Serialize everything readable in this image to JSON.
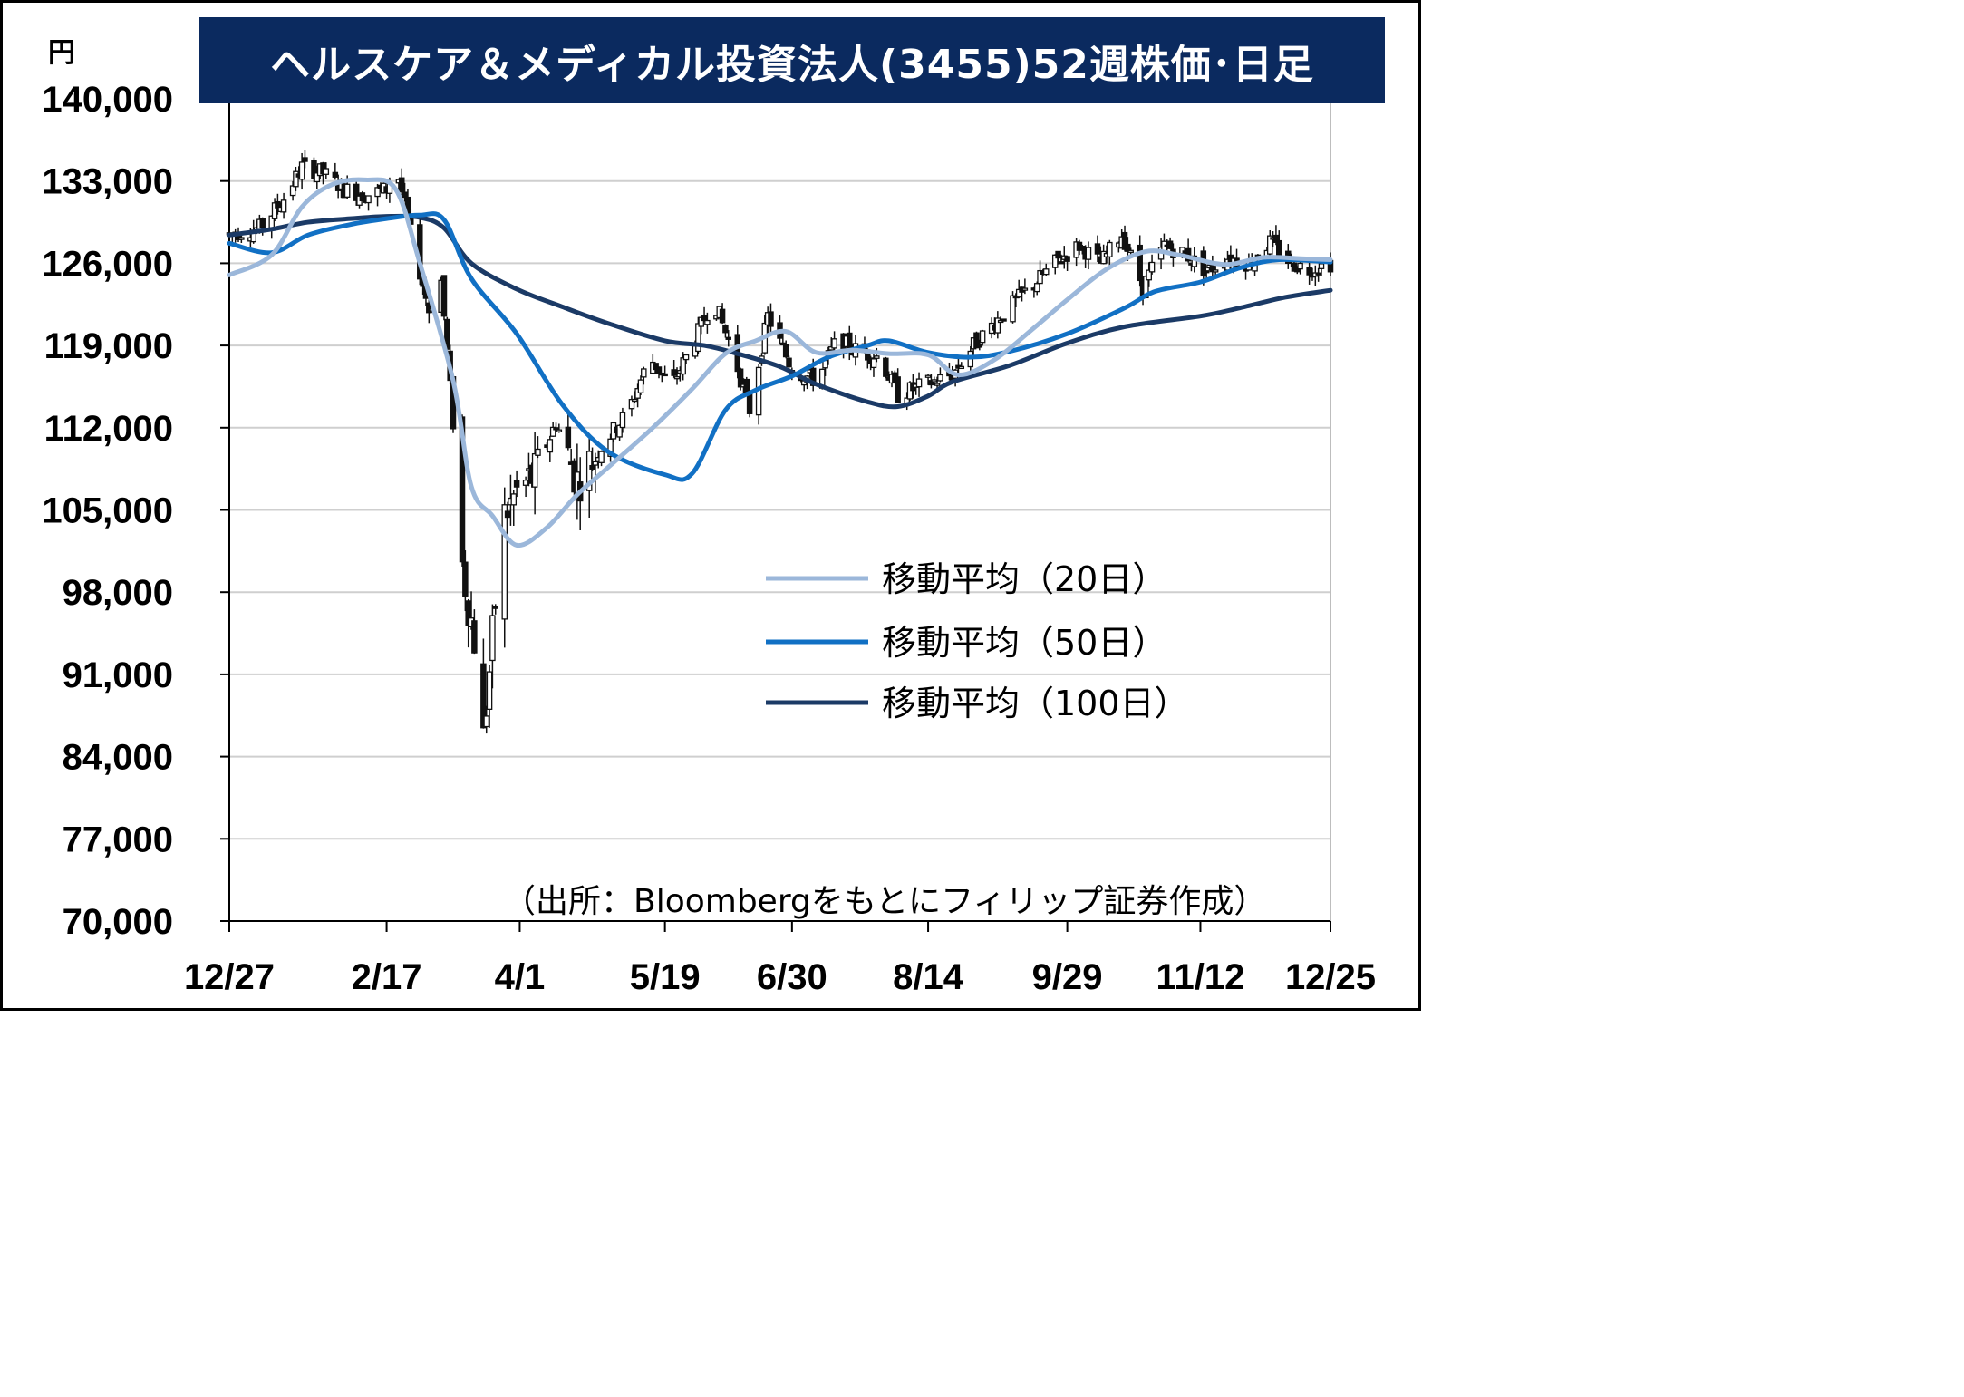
{
  "chart_data": {
    "type": "candlestick",
    "title": "ヘルスケア＆メディカル投資法人(3455)52週株価･日足",
    "unit_label": "円",
    "source_note": "（出所：Bloombergをもとにフィリップ証券作成）",
    "ylim": [
      70000,
      140000
    ],
    "y_ticks": [
      "140,000",
      "133,000",
      "126,000",
      "119,000",
      "112,000",
      "105,000",
      "98,000",
      "91,000",
      "84,000",
      "77,000",
      "70,000"
    ],
    "x_ticks": [
      "12/27",
      "2/17",
      "4/1",
      "5/19",
      "6/30",
      "8/14",
      "9/29",
      "11/12",
      "12/25"
    ],
    "grid": true,
    "legend_position": "right-middle",
    "series": [
      {
        "name": "移動平均（20日）",
        "color": "#9bb7da",
        "values": [
          {
            "x": "12/27",
            "y": 125000
          },
          {
            "x": "1/10",
            "y": 126700
          },
          {
            "x": "1/20",
            "y": 130800
          },
          {
            "x": "1/30",
            "y": 132700
          },
          {
            "x": "2/10",
            "y": 133100
          },
          {
            "x": "2/20",
            "y": 132300
          },
          {
            "x": "2/28",
            "y": 126000
          },
          {
            "x": "3/10",
            "y": 116000
          },
          {
            "x": "3/16",
            "y": 107000
          },
          {
            "x": "3/23",
            "y": 104500
          },
          {
            "x": "3/31",
            "y": 102000
          },
          {
            "x": "4/10",
            "y": 103500
          },
          {
            "x": "4/20",
            "y": 106300
          },
          {
            "x": "5/1",
            "y": 108800
          },
          {
            "x": "5/15",
            "y": 112000
          },
          {
            "x": "5/28",
            "y": 115300
          },
          {
            "x": "6/8",
            "y": 118300
          },
          {
            "x": "6/18",
            "y": 119400
          },
          {
            "x": "6/28",
            "y": 120200
          },
          {
            "x": "7/8",
            "y": 118400
          },
          {
            "x": "7/20",
            "y": 118600
          },
          {
            "x": "8/1",
            "y": 118300
          },
          {
            "x": "8/14",
            "y": 118200
          },
          {
            "x": "8/24",
            "y": 116500
          },
          {
            "x": "9/5",
            "y": 117800
          },
          {
            "x": "9/18",
            "y": 120500
          },
          {
            "x": "9/29",
            "y": 122900
          },
          {
            "x": "10/12",
            "y": 125500
          },
          {
            "x": "10/25",
            "y": 127000
          },
          {
            "x": "11/5",
            "y": 126700
          },
          {
            "x": "11/20",
            "y": 125900
          },
          {
            "x": "12/3",
            "y": 126500
          },
          {
            "x": "12/15",
            "y": 126400
          },
          {
            "x": "12/25",
            "y": 126300
          }
        ]
      },
      {
        "name": "移動平均（50日）",
        "color": "#1170c4",
        "values": [
          {
            "x": "12/27",
            "y": 127700
          },
          {
            "x": "1/10",
            "y": 126900
          },
          {
            "x": "1/22",
            "y": 128400
          },
          {
            "x": "2/5",
            "y": 129300
          },
          {
            "x": "2/17",
            "y": 129800
          },
          {
            "x": "2/28",
            "y": 130100
          },
          {
            "x": "3/7",
            "y": 129700
          },
          {
            "x": "3/16",
            "y": 124700
          },
          {
            "x": "3/31",
            "y": 120000
          },
          {
            "x": "4/15",
            "y": 114000
          },
          {
            "x": "4/30",
            "y": 110000
          },
          {
            "x": "5/19",
            "y": 108000
          },
          {
            "x": "5/28",
            "y": 108100
          },
          {
            "x": "6/8",
            "y": 113500
          },
          {
            "x": "6/18",
            "y": 115200
          },
          {
            "x": "6/30",
            "y": 116400
          },
          {
            "x": "7/12",
            "y": 118000
          },
          {
            "x": "7/25",
            "y": 119000
          },
          {
            "x": "8/1",
            "y": 119400
          },
          {
            "x": "8/14",
            "y": 118400
          },
          {
            "x": "8/28",
            "y": 118000
          },
          {
            "x": "9/10",
            "y": 118500
          },
          {
            "x": "9/29",
            "y": 120000
          },
          {
            "x": "10/18",
            "y": 122200
          },
          {
            "x": "10/28",
            "y": 123600
          },
          {
            "x": "11/12",
            "y": 124400
          },
          {
            "x": "11/25",
            "y": 125600
          },
          {
            "x": "12/8",
            "y": 126300
          },
          {
            "x": "12/25",
            "y": 126100
          }
        ]
      },
      {
        "name": "移動平均（100日）",
        "color": "#1b3a66",
        "values": [
          {
            "x": "12/27",
            "y": 128400
          },
          {
            "x": "1/10",
            "y": 128900
          },
          {
            "x": "1/22",
            "y": 129500
          },
          {
            "x": "2/5",
            "y": 129800
          },
          {
            "x": "2/17",
            "y": 130000
          },
          {
            "x": "2/28",
            "y": 129900
          },
          {
            "x": "3/7",
            "y": 129000
          },
          {
            "x": "3/16",
            "y": 126000
          },
          {
            "x": "3/31",
            "y": 123800
          },
          {
            "x": "4/15",
            "y": 122300
          },
          {
            "x": "4/30",
            "y": 120900
          },
          {
            "x": "5/19",
            "y": 119400
          },
          {
            "x": "6/1",
            "y": 119000
          },
          {
            "x": "6/12",
            "y": 118300
          },
          {
            "x": "6/26",
            "y": 117200
          },
          {
            "x": "7/8",
            "y": 115700
          },
          {
            "x": "7/25",
            "y": 114200
          },
          {
            "x": "8/4",
            "y": 113800
          },
          {
            "x": "8/14",
            "y": 114700
          },
          {
            "x": "8/22",
            "y": 115900
          },
          {
            "x": "9/10",
            "y": 117300
          },
          {
            "x": "9/29",
            "y": 119200
          },
          {
            "x": "10/18",
            "y": 120600
          },
          {
            "x": "11/12",
            "y": 121500
          },
          {
            "x": "11/25",
            "y": 122200
          },
          {
            "x": "12/10",
            "y": 123100
          },
          {
            "x": "12/25",
            "y": 123700
          }
        ]
      },
      {
        "name": "",
        "kind": "close_approx",
        "color": "#000000",
        "values": [
          {
            "x": "12/27",
            "y": 128500
          },
          {
            "x": "1/6",
            "y": 129000
          },
          {
            "x": "1/14",
            "y": 131500
          },
          {
            "x": "1/20",
            "y": 134200
          },
          {
            "x": "1/27",
            "y": 133700
          },
          {
            "x": "2/3",
            "y": 132300
          },
          {
            "x": "2/10",
            "y": 131800
          },
          {
            "x": "2/17",
            "y": 132300
          },
          {
            "x": "2/20",
            "y": 134400
          },
          {
            "x": "2/25",
            "y": 128600
          },
          {
            "x": "3/2",
            "y": 122000
          },
          {
            "x": "3/6",
            "y": 124500
          },
          {
            "x": "3/10",
            "y": 112400
          },
          {
            "x": "3/13",
            "y": 100300
          },
          {
            "x": "3/17",
            "y": 94000
          },
          {
            "x": "3/20",
            "y": 85500
          },
          {
            "x": "3/24",
            "y": 97000
          },
          {
            "x": "3/27",
            "y": 104500
          },
          {
            "x": "3/31",
            "y": 106500
          },
          {
            "x": "4/6",
            "y": 108000
          },
          {
            "x": "4/13",
            "y": 112500
          },
          {
            "x": "4/20",
            "y": 107500
          },
          {
            "x": "4/27",
            "y": 110000
          },
          {
            "x": "5/7",
            "y": 113500
          },
          {
            "x": "5/14",
            "y": 118000
          },
          {
            "x": "5/21",
            "y": 115500
          },
          {
            "x": "5/28",
            "y": 119000
          },
          {
            "x": "6/4",
            "y": 123000
          },
          {
            "x": "6/11",
            "y": 118000
          },
          {
            "x": "6/16",
            "y": 113500
          },
          {
            "x": "6/22",
            "y": 121500
          },
          {
            "x": "6/30",
            "y": 117000
          },
          {
            "x": "7/8",
            "y": 116000
          },
          {
            "x": "7/15",
            "y": 119500
          },
          {
            "x": "7/22",
            "y": 118500
          },
          {
            "x": "7/29",
            "y": 118000
          },
          {
            "x": "8/4",
            "y": 114800
          },
          {
            "x": "8/14",
            "y": 115800
          },
          {
            "x": "8/22",
            "y": 116500
          },
          {
            "x": "8/29",
            "y": 119000
          },
          {
            "x": "9/5",
            "y": 121000
          },
          {
            "x": "9/12",
            "y": 122800
          },
          {
            "x": "9/19",
            "y": 124500
          },
          {
            "x": "9/26",
            "y": 126300
          },
          {
            "x": "10/3",
            "y": 127500
          },
          {
            "x": "10/10",
            "y": 126000
          },
          {
            "x": "10/17",
            "y": 128500
          },
          {
            "x": "10/24",
            "y": 124000
          },
          {
            "x": "10/31",
            "y": 127500
          },
          {
            "x": "11/7",
            "y": 126800
          },
          {
            "x": "11/14",
            "y": 125300
          },
          {
            "x": "11/21",
            "y": 126500
          },
          {
            "x": "11/28",
            "y": 126000
          },
          {
            "x": "12/5",
            "y": 127800
          },
          {
            "x": "12/12",
            "y": 126000
          },
          {
            "x": "12/18",
            "y": 125500
          },
          {
            "x": "12/25",
            "y": 126000
          }
        ]
      }
    ]
  }
}
